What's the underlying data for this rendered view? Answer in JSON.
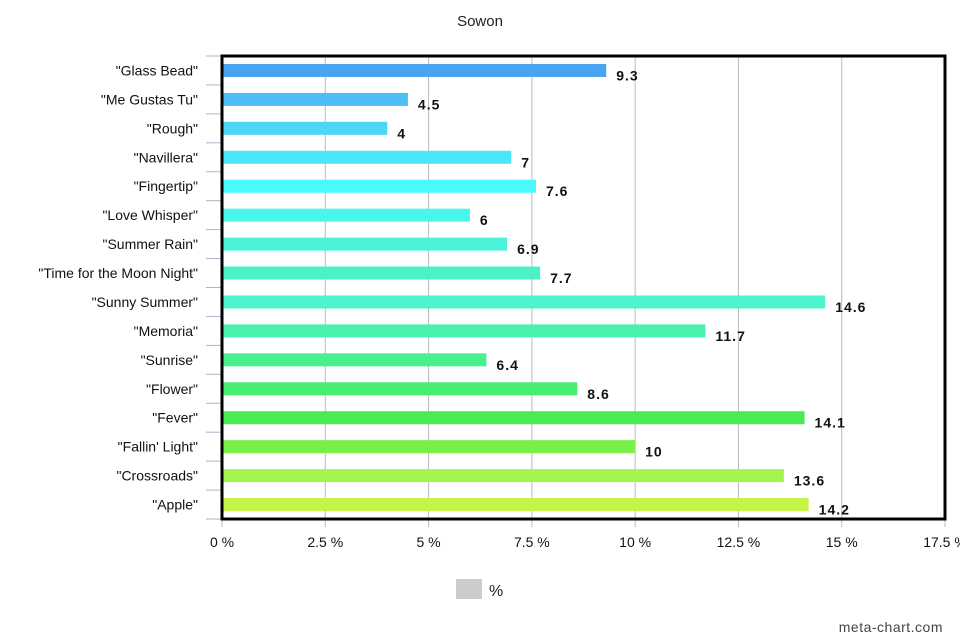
{
  "chart_data": {
    "type": "bar",
    "orientation": "horizontal",
    "title": "Sowon",
    "categories": [
      "\"Glass Bead\"",
      "\"Me Gustas Tu\"",
      "\"Rough\"",
      "\"Navillera\"",
      "\"Fingertip\"",
      "\"Love Whisper\"",
      "\"Summer Rain\"",
      "\"Time for the Moon Night\"",
      "\"Sunny Summer\"",
      "\"Memoria\"",
      "\"Sunrise\"",
      "\"Flower\"",
      "\"Fever\"",
      "\"Fallin' Light\"",
      "\"Crossroads\"",
      "\"Apple\""
    ],
    "values": [
      9.3,
      4.5,
      4,
      7,
      7.6,
      6,
      6.9,
      7.7,
      14.6,
      11.7,
      6.4,
      8.6,
      14.1,
      10,
      13.6,
      14.2
    ],
    "value_labels": [
      "9.3",
      "4.5",
      "4",
      "7",
      "7.6",
      "6",
      "6.9",
      "7.7",
      "14.6",
      "11.7",
      "6.4",
      "8.6",
      "14.1",
      "10",
      "13.6",
      "14.2"
    ],
    "bar_colors": [
      "#4aa3f0",
      "#4cbef4",
      "#4ed6f8",
      "#4be6fb",
      "#48fafc",
      "#48f6ec",
      "#4af2d8",
      "#4bf2c8",
      "#4cf5cc",
      "#48f2ac",
      "#48f08e",
      "#48ee72",
      "#46ec50",
      "#78f048",
      "#a4f450",
      "#c4f448"
    ],
    "xlim": [
      0,
      17.5
    ],
    "xticks": [
      0,
      2.5,
      5,
      7.5,
      10,
      12.5,
      15,
      17.5
    ],
    "xtick_labels": [
      "0 %",
      "2.5 %",
      "5 %",
      "7.5 %",
      "10 %",
      "12.5 %",
      "15 %",
      "17.5 %"
    ],
    "grid": "vertical",
    "legend": {
      "label": "%",
      "placement": "bottom-center",
      "swatch_color": "#cccccc"
    },
    "credit": "meta-chart.com"
  }
}
